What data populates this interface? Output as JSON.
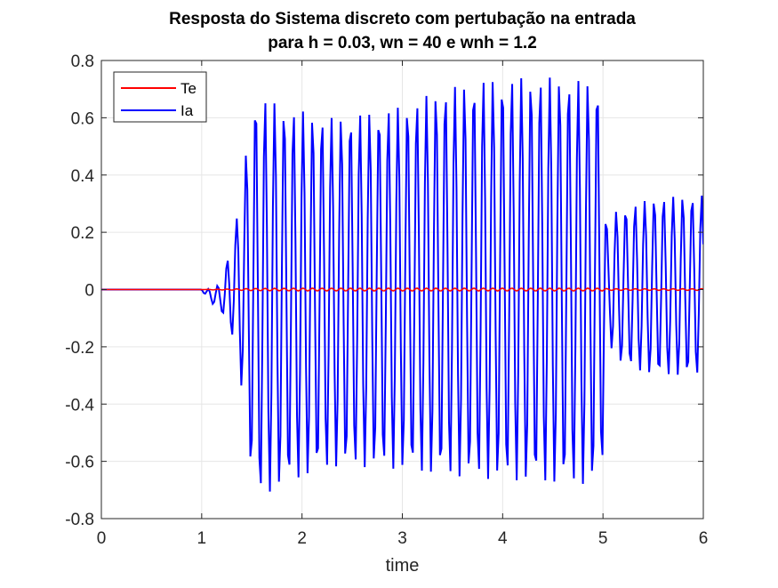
{
  "chart_data": {
    "type": "line",
    "title": [
      "Resposta do Sistema discreto com pertubação na entrada",
      "para h = 0.03, wn = 40 e wnh = 1.2"
    ],
    "xlabel": "time",
    "ylabel": "",
    "xlim": [
      0,
      6
    ],
    "ylim": [
      -0.8,
      0.8
    ],
    "xticks": [
      0,
      1,
      2,
      3,
      4,
      5,
      6
    ],
    "xtick_labels": [
      "0",
      "1",
      "2",
      "3",
      "4",
      "5",
      "6"
    ],
    "yticks": [
      -0.8,
      -0.6,
      -0.4,
      -0.2,
      0,
      0.2,
      0.4,
      0.6,
      0.8
    ],
    "ytick_labels": [
      "-0.8",
      "-0.6",
      "-0.4",
      "-0.2",
      "0",
      "0.2",
      "0.4",
      "0.6",
      "0.8"
    ],
    "grid": true,
    "legend": {
      "placement": "top-left",
      "entries": [
        "Te",
        "Ia"
      ]
    },
    "series": [
      {
        "name": "Te",
        "color": "#ff0000",
        "description_points": {
          "x": [
            0,
            6
          ],
          "y": [
            0,
            0
          ]
        },
        "envelope": {
          "x": [
            0,
            1.0,
            1.1,
            1.3,
            1.5,
            2.0,
            3.0,
            4.0,
            5.0,
            5.05,
            6.0
          ],
          "amp": [
            0,
            0,
            0.001,
            0.002,
            0.004,
            0.005,
            0.005,
            0.005,
            0.005,
            0.003,
            0.003
          ]
        }
      },
      {
        "name": "Ia",
        "color": "#0000ff",
        "envelope": {
          "x": [
            0,
            1.0,
            1.05,
            1.2,
            1.35,
            1.45,
            1.52,
            1.6,
            1.9,
            2.3,
            2.7,
            3.0,
            3.4,
            3.8,
            4.2,
            4.6,
            4.95,
            5.0,
            5.05,
            5.1,
            5.5,
            6.0
          ],
          "max": [
            0,
            0,
            0.0,
            0.02,
            0.25,
            0.5,
            0.67,
            0.67,
            0.63,
            0.6,
            0.62,
            0.64,
            0.7,
            0.73,
            0.74,
            0.74,
            0.72,
            0.55,
            0.13,
            0.27,
            0.32,
            0.33
          ],
          "min": [
            0,
            0,
            -0.03,
            -0.08,
            -0.2,
            -0.5,
            -0.73,
            -0.72,
            -0.67,
            -0.62,
            -0.62,
            -0.63,
            -0.65,
            -0.66,
            -0.67,
            -0.68,
            -0.68,
            -0.6,
            -0.1,
            -0.25,
            -0.3,
            -0.3
          ]
        },
        "sample_period": 0.03,
        "oscillation_period": 0.0946
      }
    ]
  }
}
